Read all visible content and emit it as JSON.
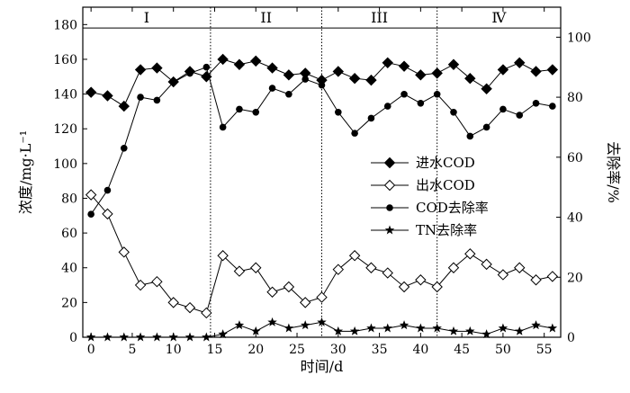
{
  "chart_data": {
    "type": "line",
    "xlabel": "时间/d",
    "ylabel_left": "浓度/mg·L⁻¹",
    "ylabel_right": "去除率/%",
    "xlim": [
      -1,
      57
    ],
    "ylim_left": [
      0,
      190
    ],
    "ylim_right": [
      0,
      110
    ],
    "xticks": [
      0,
      5,
      10,
      15,
      20,
      25,
      30,
      35,
      40,
      45,
      50,
      55
    ],
    "yticks_left": [
      0,
      20,
      40,
      60,
      80,
      100,
      120,
      140,
      160,
      180
    ],
    "yticks_right": [
      0,
      20,
      40,
      60,
      80,
      100
    ],
    "grid": false,
    "legend_position": "center-right",
    "phase_line_y": 178,
    "phases": [
      {
        "label": "I",
        "start": -1,
        "end": 14.5
      },
      {
        "label": "II",
        "start": 14.5,
        "end": 28
      },
      {
        "label": "III",
        "start": 28,
        "end": 42
      },
      {
        "label": "Ⅳ",
        "start": 42,
        "end": 57
      }
    ],
    "series": [
      {
        "name": "进水COD",
        "axis": "left",
        "marker": "diamond-filled",
        "x": [
          0,
          2,
          4,
          6,
          8,
          10,
          12,
          14,
          16,
          18,
          20,
          22,
          24,
          26,
          28,
          30,
          32,
          34,
          36,
          38,
          40,
          42,
          44,
          46,
          48,
          50,
          52,
          54,
          56
        ],
        "y": [
          141,
          139,
          133,
          154,
          155,
          147,
          153,
          150,
          160,
          157,
          159,
          155,
          151,
          152,
          148,
          153,
          149,
          148,
          158,
          156,
          151,
          152,
          157,
          149,
          143,
          154,
          158,
          153,
          154
        ]
      },
      {
        "name": "出水COD",
        "axis": "left",
        "marker": "diamond-open",
        "x": [
          0,
          2,
          4,
          6,
          8,
          10,
          12,
          14,
          16,
          18,
          20,
          22,
          24,
          26,
          28,
          30,
          32,
          34,
          36,
          38,
          40,
          42,
          44,
          46,
          48,
          50,
          52,
          54,
          56
        ],
        "y": [
          82,
          71,
          49,
          30,
          32,
          20,
          17,
          14,
          47,
          38,
          40,
          26,
          29,
          20,
          23,
          39,
          47,
          40,
          37,
          29,
          33,
          29,
          40,
          48,
          42,
          36,
          40,
          33,
          35
        ]
      },
      {
        "name": "COD去除率",
        "axis": "right",
        "marker": "circle-filled",
        "x": [
          0,
          2,
          4,
          6,
          8,
          10,
          12,
          14,
          16,
          18,
          20,
          22,
          24,
          26,
          28,
          30,
          32,
          34,
          36,
          38,
          40,
          42,
          44,
          46,
          48,
          50,
          52,
          54,
          56
        ],
        "y": [
          41,
          49,
          63,
          80,
          79,
          85,
          88,
          90,
          70,
          76,
          75,
          83,
          81,
          86,
          84,
          75,
          68,
          73,
          77,
          81,
          78,
          81,
          75,
          67,
          70,
          76,
          74,
          78,
          77
        ]
      },
      {
        "name": "TN去除率",
        "axis": "right",
        "marker": "star",
        "x": [
          0,
          2,
          4,
          6,
          8,
          10,
          12,
          14,
          16,
          18,
          20,
          22,
          24,
          26,
          28,
          30,
          32,
          34,
          36,
          38,
          40,
          42,
          44,
          46,
          48,
          50,
          52,
          54,
          56
        ],
        "y": [
          0,
          0,
          0,
          0,
          0,
          0,
          0,
          0,
          1,
          4,
          2,
          5,
          3,
          4,
          5,
          2,
          2,
          3,
          3,
          4,
          3,
          3,
          2,
          2,
          1,
          3,
          2,
          4,
          3
        ]
      }
    ]
  }
}
